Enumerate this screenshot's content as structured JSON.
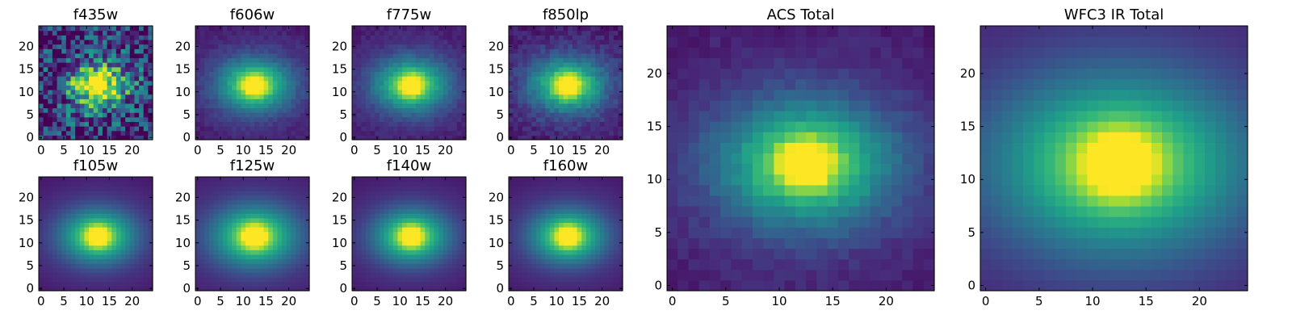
{
  "colormap": "viridis",
  "chart_data": [
    {
      "type": "heatmap",
      "title": "f435w",
      "noise": "high",
      "core_size": "small",
      "xticks": [
        "0",
        "5",
        "10",
        "15",
        "20"
      ],
      "yticks": [
        "0",
        "5",
        "10",
        "15",
        "20"
      ],
      "xlim": [
        -0.5,
        24.5
      ],
      "ylim": [
        -0.5,
        24.5
      ]
    },
    {
      "type": "heatmap",
      "title": "f606w",
      "noise": "low",
      "core_size": "small",
      "xticks": [
        "0",
        "5",
        "10",
        "15",
        "20"
      ],
      "yticks": [
        "0",
        "5",
        "10",
        "15",
        "20"
      ],
      "xlim": [
        -0.5,
        24.5
      ],
      "ylim": [
        -0.5,
        24.5
      ]
    },
    {
      "type": "heatmap",
      "title": "f775w",
      "noise": "low",
      "core_size": "small",
      "xticks": [
        "0",
        "5",
        "10",
        "15",
        "20"
      ],
      "yticks": [
        "0",
        "5",
        "10",
        "15",
        "20"
      ],
      "xlim": [
        -0.5,
        24.5
      ],
      "ylim": [
        -0.5,
        24.5
      ]
    },
    {
      "type": "heatmap",
      "title": "f850lp",
      "noise": "medium",
      "core_size": "small",
      "xticks": [
        "0",
        "5",
        "10",
        "15",
        "20"
      ],
      "yticks": [
        "0",
        "5",
        "10",
        "15",
        "20"
      ],
      "xlim": [
        -0.5,
        24.5
      ],
      "ylim": [
        -0.5,
        24.5
      ]
    },
    {
      "type": "heatmap",
      "title": "f105w",
      "noise": "none",
      "core_size": "small",
      "xticks": [
        "0",
        "5",
        "10",
        "15",
        "20"
      ],
      "yticks": [
        "0",
        "5",
        "10",
        "15",
        "20"
      ],
      "xlim": [
        -0.5,
        24.5
      ],
      "ylim": [
        -0.5,
        24.5
      ]
    },
    {
      "type": "heatmap",
      "title": "f125w",
      "noise": "none",
      "core_size": "medium",
      "xticks": [
        "0",
        "5",
        "10",
        "15",
        "20"
      ],
      "yticks": [
        "0",
        "5",
        "10",
        "15",
        "20"
      ],
      "xlim": [
        -0.5,
        24.5
      ],
      "ylim": [
        -0.5,
        24.5
      ]
    },
    {
      "type": "heatmap",
      "title": "f140w",
      "noise": "none",
      "core_size": "small",
      "xticks": [
        "0",
        "5",
        "10",
        "15",
        "20"
      ],
      "yticks": [
        "0",
        "5",
        "10",
        "15",
        "20"
      ],
      "xlim": [
        -0.5,
        24.5
      ],
      "ylim": [
        -0.5,
        24.5
      ]
    },
    {
      "type": "heatmap",
      "title": "f160w",
      "noise": "none",
      "core_size": "small",
      "xticks": [
        "0",
        "5",
        "10",
        "15",
        "20"
      ],
      "yticks": [
        "0",
        "5",
        "10",
        "15",
        "20"
      ],
      "xlim": [
        -0.5,
        24.5
      ],
      "ylim": [
        -0.5,
        24.5
      ]
    },
    {
      "type": "heatmap",
      "title": "ACS Total",
      "noise": "low",
      "core_size": "small",
      "xticks": [
        "0",
        "5",
        "10",
        "15",
        "20"
      ],
      "yticks": [
        "0",
        "5",
        "10",
        "15",
        "20"
      ],
      "xlim": [
        -0.5,
        24.5
      ],
      "ylim": [
        -0.5,
        24.5
      ]
    },
    {
      "type": "heatmap",
      "title": "WFC3 IR Total",
      "noise": "none",
      "core_size": "large",
      "xticks": [
        "0",
        "5",
        "10",
        "15",
        "20"
      ],
      "yticks": [
        "0",
        "5",
        "10",
        "15",
        "20"
      ],
      "xlim": [
        -0.5,
        24.5
      ],
      "ylim": [
        -0.5,
        24.5
      ]
    }
  ]
}
